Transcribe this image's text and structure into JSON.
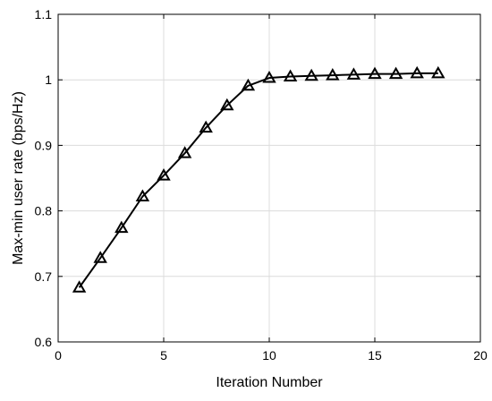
{
  "chart_data": {
    "type": "line",
    "title": "",
    "xlabel": "Iteration Number",
    "ylabel": "Max-min user rate (bps/Hz)",
    "xlim": [
      0,
      20
    ],
    "ylim": [
      0.6,
      1.1
    ],
    "xticks": [
      0,
      5,
      10,
      15,
      20
    ],
    "yticks": [
      0.6,
      0.7,
      0.8,
      0.9,
      1.0,
      1.1
    ],
    "xtick_labels": [
      "0",
      "5",
      "10",
      "15",
      "20"
    ],
    "ytick_labels": [
      "0.6",
      "0.7",
      "0.8",
      "0.9",
      "1",
      "1.1"
    ],
    "grid": true,
    "marker": "triangle",
    "series": [
      {
        "color": "#000000",
        "x": [
          1,
          2,
          3,
          4,
          5,
          6,
          7,
          8,
          9,
          10,
          11,
          12,
          13,
          14,
          15,
          16,
          17,
          18
        ],
        "y": [
          0.683,
          0.728,
          0.774,
          0.822,
          0.854,
          0.888,
          0.927,
          0.961,
          0.991,
          1.003,
          1.005,
          1.006,
          1.007,
          1.008,
          1.009,
          1.009,
          1.01,
          1.01
        ]
      }
    ]
  }
}
